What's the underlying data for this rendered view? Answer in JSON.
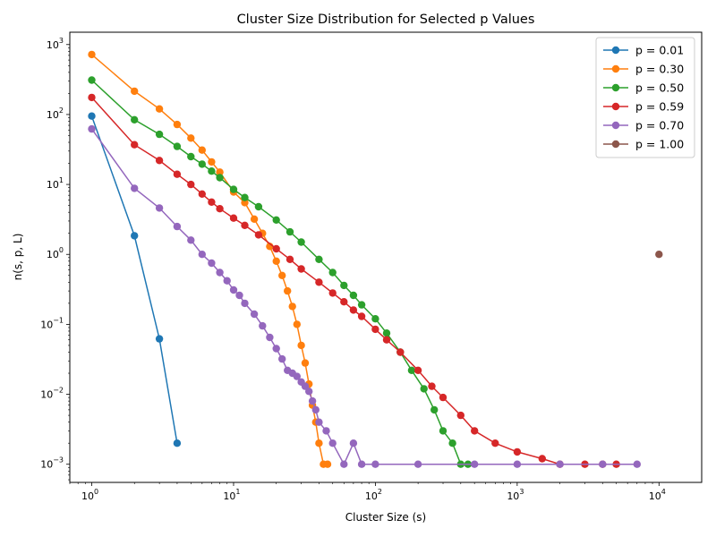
{
  "chart_data": {
    "type": "line",
    "title": "Cluster Size Distribution for Selected p Values",
    "xlabel": "Cluster Size (s)",
    "ylabel": "n(s, p, L)",
    "xscale": "log",
    "yscale": "log",
    "xlim": [
      0.7,
      20000
    ],
    "ylim": [
      0.00055,
      1500
    ],
    "x_ticks": [
      {
        "value": 1,
        "mantissa": "10",
        "exp": "0"
      },
      {
        "value": 10,
        "mantissa": "10",
        "exp": "1"
      },
      {
        "value": 100,
        "mantissa": "10",
        "exp": "2"
      },
      {
        "value": 1000,
        "mantissa": "10",
        "exp": "3"
      },
      {
        "value": 10000,
        "mantissa": "10",
        "exp": "4"
      }
    ],
    "y_ticks": [
      {
        "value": 0.001,
        "mantissa": "10",
        "exp": "−3"
      },
      {
        "value": 0.01,
        "mantissa": "10",
        "exp": "−2"
      },
      {
        "value": 0.1,
        "mantissa": "10",
        "exp": "−1"
      },
      {
        "value": 1,
        "mantissa": "10",
        "exp": "0"
      },
      {
        "value": 10,
        "mantissa": "10",
        "exp": "1"
      },
      {
        "value": 100,
        "mantissa": "10",
        "exp": "2"
      },
      {
        "value": 1000,
        "mantissa": "10",
        "exp": "3"
      }
    ],
    "grid": false,
    "legend_position": "top-right",
    "series": [
      {
        "name": "p = 0.01",
        "color": "#1f77b4",
        "points": [
          [
            1,
            95
          ],
          [
            2,
            1.85
          ],
          [
            3,
            0.062
          ],
          [
            4,
            0.002
          ]
        ]
      },
      {
        "name": "p = 0.30",
        "color": "#ff7f0e",
        "points": [
          [
            1,
            720
          ],
          [
            2,
            215
          ],
          [
            3,
            120
          ],
          [
            4,
            72
          ],
          [
            5,
            46
          ],
          [
            6,
            31
          ],
          [
            7,
            21
          ],
          [
            8,
            15
          ],
          [
            10,
            7.8
          ],
          [
            12,
            5.5
          ],
          [
            14,
            3.2
          ],
          [
            16,
            2.0
          ],
          [
            18,
            1.3
          ],
          [
            20,
            0.8
          ],
          [
            22,
            0.5
          ],
          [
            24,
            0.3
          ],
          [
            26,
            0.18
          ],
          [
            28,
            0.1
          ],
          [
            30,
            0.05
          ],
          [
            32,
            0.028
          ],
          [
            34,
            0.014
          ],
          [
            36,
            0.007
          ],
          [
            38,
            0.004
          ],
          [
            40,
            0.002
          ],
          [
            43,
            0.001
          ],
          [
            46,
            0.001
          ]
        ]
      },
      {
        "name": "p = 0.50",
        "color": "#2ca02c",
        "points": [
          [
            1,
            310
          ],
          [
            2,
            84
          ],
          [
            3,
            52
          ],
          [
            4,
            35
          ],
          [
            5,
            25
          ],
          [
            6,
            19.5
          ],
          [
            7,
            15.5
          ],
          [
            8,
            12.5
          ],
          [
            10,
            8.5
          ],
          [
            12,
            6.5
          ],
          [
            15,
            4.8
          ],
          [
            20,
            3.1
          ],
          [
            25,
            2.1
          ],
          [
            30,
            1.5
          ],
          [
            40,
            0.85
          ],
          [
            50,
            0.55
          ],
          [
            60,
            0.36
          ],
          [
            70,
            0.26
          ],
          [
            80,
            0.19
          ],
          [
            100,
            0.12
          ],
          [
            120,
            0.075
          ],
          [
            150,
            0.04
          ],
          [
            180,
            0.022
          ],
          [
            220,
            0.012
          ],
          [
            260,
            0.006
          ],
          [
            300,
            0.003
          ],
          [
            350,
            0.002
          ],
          [
            400,
            0.001
          ],
          [
            450,
            0.001
          ]
        ]
      },
      {
        "name": "p = 0.59",
        "color": "#d62728",
        "points": [
          [
            1,
            175
          ],
          [
            2,
            37
          ],
          [
            3,
            22
          ],
          [
            4,
            14
          ],
          [
            5,
            10
          ],
          [
            6,
            7.3
          ],
          [
            7,
            5.6
          ],
          [
            8,
            4.5
          ],
          [
            10,
            3.3
          ],
          [
            12,
            2.6
          ],
          [
            15,
            1.9
          ],
          [
            20,
            1.2
          ],
          [
            25,
            0.85
          ],
          [
            30,
            0.62
          ],
          [
            40,
            0.4
          ],
          [
            50,
            0.28
          ],
          [
            60,
            0.21
          ],
          [
            70,
            0.16
          ],
          [
            80,
            0.13
          ],
          [
            100,
            0.085
          ],
          [
            120,
            0.06
          ],
          [
            150,
            0.04
          ],
          [
            200,
            0.022
          ],
          [
            250,
            0.013
          ],
          [
            300,
            0.009
          ],
          [
            400,
            0.005
          ],
          [
            500,
            0.003
          ],
          [
            700,
            0.002
          ],
          [
            1000,
            0.0015
          ],
          [
            1500,
            0.0012
          ],
          [
            2000,
            0.001
          ],
          [
            3000,
            0.001
          ],
          [
            4000,
            0.001
          ],
          [
            5000,
            0.001
          ]
        ]
      },
      {
        "name": "p = 0.70",
        "color": "#9467bd",
        "points": [
          [
            1,
            62
          ],
          [
            2,
            8.8
          ],
          [
            3,
            4.6
          ],
          [
            4,
            2.5
          ],
          [
            5,
            1.6
          ],
          [
            6,
            1.0
          ],
          [
            7,
            0.75
          ],
          [
            8,
            0.55
          ],
          [
            9,
            0.42
          ],
          [
            10,
            0.31
          ],
          [
            11,
            0.26
          ],
          [
            12,
            0.2
          ],
          [
            14,
            0.14
          ],
          [
            16,
            0.095
          ],
          [
            18,
            0.065
          ],
          [
            20,
            0.045
          ],
          [
            22,
            0.032
          ],
          [
            24,
            0.022
          ],
          [
            26,
            0.02
          ],
          [
            28,
            0.018
          ],
          [
            30,
            0.015
          ],
          [
            32,
            0.013
          ],
          [
            34,
            0.011
          ],
          [
            36,
            0.008
          ],
          [
            38,
            0.006
          ],
          [
            40,
            0.004
          ],
          [
            45,
            0.003
          ],
          [
            50,
            0.002
          ],
          [
            60,
            0.001
          ],
          [
            70,
            0.002
          ],
          [
            80,
            0.001
          ],
          [
            100,
            0.001
          ],
          [
            200,
            0.001
          ],
          [
            500,
            0.001
          ],
          [
            1000,
            0.001
          ],
          [
            2000,
            0.001
          ],
          [
            4000,
            0.001
          ],
          [
            7000,
            0.001
          ]
        ]
      },
      {
        "name": "p = 1.00",
        "color": "#8c564b",
        "points": [
          [
            10000,
            1.0
          ]
        ]
      }
    ]
  }
}
